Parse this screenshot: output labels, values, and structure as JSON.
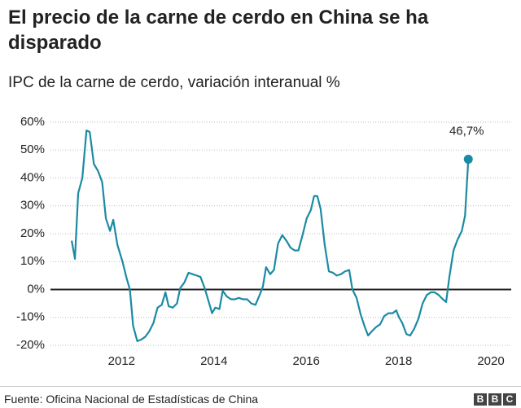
{
  "chart_data": {
    "type": "line",
    "title": "El precio de la carne de cerdo en China se ha disparado",
    "subtitle": "IPC de la carne de cerdo, variación interanual %",
    "source": "Fuente: Oficina Nacional de Estadísticas de China",
    "logo": [
      "B",
      "B",
      "C"
    ],
    "xlim": [
      2010.46,
      2020.44
    ],
    "xticks": [
      2012,
      2014,
      2016,
      2018,
      2020
    ],
    "ylim": [
      -20,
      60
    ],
    "yticks": [
      {
        "value": -20,
        "label": "-20%"
      },
      {
        "value": -10,
        "label": "-10%"
      },
      {
        "value": 0,
        "label": "0%"
      },
      {
        "value": 10,
        "label": "10%"
      },
      {
        "value": 20,
        "label": "20%"
      },
      {
        "value": 30,
        "label": "30%"
      },
      {
        "value": 40,
        "label": "40%"
      },
      {
        "value": 50,
        "label": "50%"
      },
      {
        "value": 60,
        "label": "60%"
      }
    ],
    "grid": true,
    "x": [
      2010.92,
      2010.99,
      2011.06,
      2011.15,
      2011.24,
      2011.31,
      2011.4,
      2011.49,
      2011.58,
      2011.66,
      2011.75,
      2011.82,
      2011.91,
      2012.02,
      2012.11,
      2012.18,
      2012.25,
      2012.34,
      2012.42,
      2012.51,
      2012.6,
      2012.69,
      2012.78,
      2012.87,
      2012.95,
      2013.02,
      2013.11,
      2013.2,
      2013.27,
      2013.36,
      2013.45,
      2013.54,
      2013.63,
      2013.71,
      2013.8,
      2013.89,
      2013.96,
      2014.03,
      2014.12,
      2014.19,
      2014.28,
      2014.37,
      2014.46,
      2014.54,
      2014.63,
      2014.72,
      2014.81,
      2014.9,
      2014.99,
      2015.06,
      2015.13,
      2015.22,
      2015.3,
      2015.39,
      2015.48,
      2015.57,
      2015.66,
      2015.75,
      2015.83,
      2015.92,
      2016.01,
      2016.1,
      2016.17,
      2016.24,
      2016.31,
      2016.4,
      2016.49,
      2016.58,
      2016.66,
      2016.75,
      2016.84,
      2016.93,
      2017.0,
      2017.09,
      2017.18,
      2017.27,
      2017.34,
      2017.42,
      2017.51,
      2017.6,
      2017.69,
      2017.78,
      2017.87,
      2017.95,
      2018.01,
      2018.08,
      2018.17,
      2018.25,
      2018.34,
      2018.43,
      2018.52,
      2018.61,
      2018.7,
      2018.78,
      2018.87,
      2018.96,
      2019.03,
      2019.1,
      2019.19,
      2019.28,
      2019.37,
      2019.44,
      2019.51
    ],
    "series": [
      {
        "name": "IPC de la carne de cerdo",
        "color": "#1b8aa3",
        "values": [
          17.5,
          11,
          34.5,
          40,
          57,
          56.5,
          45,
          42.5,
          38.5,
          25.5,
          21,
          25,
          16,
          10,
          4,
          0,
          -13,
          -18.5,
          -18,
          -17,
          -15,
          -12,
          -6.5,
          -5.5,
          -1,
          -6,
          -6.5,
          -5,
          0.5,
          2.5,
          6,
          5.5,
          5,
          4.5,
          0.5,
          -4.5,
          -8.5,
          -6.5,
          -7,
          -0.5,
          -2.5,
          -3.5,
          -3.5,
          -3,
          -3.5,
          -3.5,
          -5,
          -5.5,
          -2,
          1,
          8,
          5.5,
          7,
          16.5,
          19.5,
          17.5,
          15,
          14,
          14,
          19.5,
          25.5,
          28.5,
          33.5,
          33.5,
          29,
          16,
          6.5,
          6,
          5,
          5.5,
          6.5,
          7,
          0,
          -3,
          -9,
          -13.5,
          -16.5,
          -15,
          -13.5,
          -12.5,
          -9.5,
          -8.5,
          -8.5,
          -7.5,
          -10,
          -12,
          -16,
          -16.5,
          -14,
          -10.5,
          -5,
          -2,
          -1,
          -1,
          -2,
          -3.5,
          -4.5,
          4.5,
          14,
          18,
          21,
          26.5,
          46.7
        ],
        "value_labels": [
          null,
          null,
          null,
          null,
          null,
          null,
          null,
          null,
          null,
          null,
          null,
          null,
          null,
          null,
          null,
          null,
          null,
          null,
          null,
          null,
          null,
          null,
          null,
          null,
          null,
          null,
          null,
          null,
          null,
          null,
          null,
          null,
          null,
          null,
          null,
          null,
          null,
          null,
          null,
          null,
          null,
          null,
          null,
          null,
          null,
          null,
          null,
          null,
          null,
          null,
          null,
          null,
          null,
          null,
          null,
          null,
          null,
          null,
          null,
          null,
          null,
          null,
          null,
          null,
          null,
          null,
          null,
          null,
          null,
          null,
          null,
          null,
          null,
          null,
          null,
          null,
          null,
          null,
          null,
          null,
          null,
          null,
          null,
          null,
          null,
          null,
          null,
          null,
          null,
          null,
          null,
          null,
          null,
          null,
          null,
          null,
          null,
          null,
          null,
          null,
          null,
          null,
          "46,7%"
        ]
      }
    ]
  }
}
